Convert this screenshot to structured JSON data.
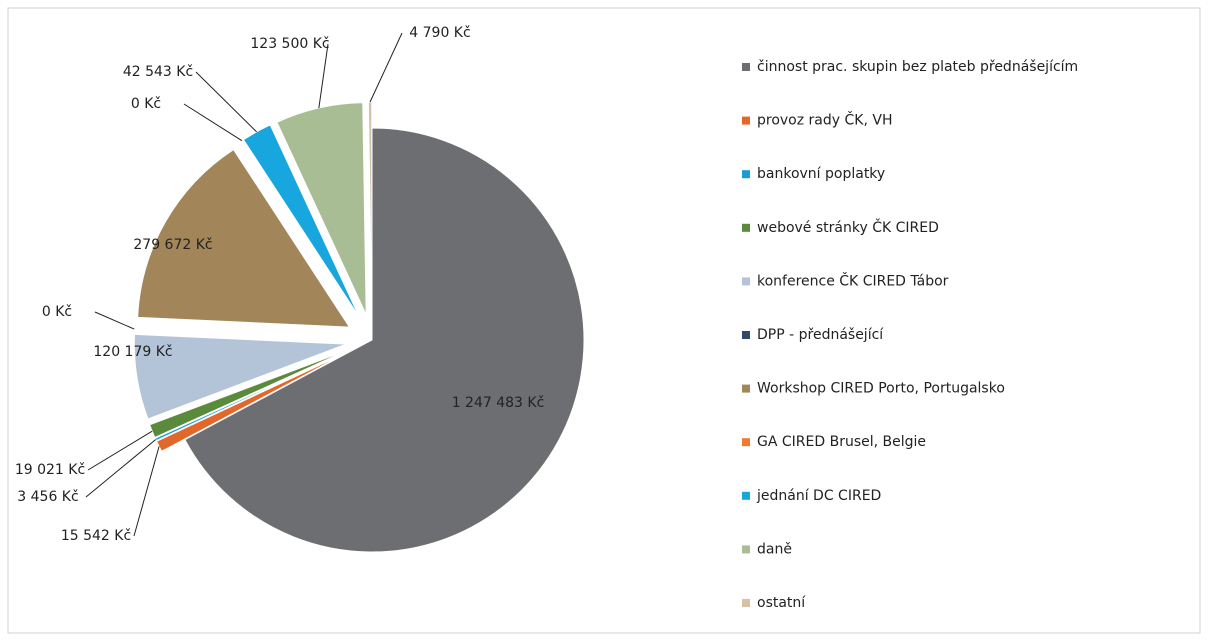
{
  "chart_data": {
    "type": "pie",
    "categories": [
      "činnost prac. skupin bez plateb přednášejícím",
      "provoz rady ČK, VH",
      "bankovní poplatky",
      "webové stránky ČK CIRED",
      "konference ČK CIRED Tábor",
      "DPP - přednášející",
      "Workshop CIRED Porto, Portugalsko",
      "GA CIRED Brusel, Belgie",
      "jednání DC CIRED",
      "daně",
      "ostatní"
    ],
    "values": [
      1247483,
      15542,
      3456,
      19021,
      120179,
      0,
      279672,
      0,
      42543,
      123500,
      4790
    ],
    "value_labels": [
      "1 247 483 Kč",
      "15 542 Kč",
      "3 456 Kč",
      "19 021 Kč",
      "120 179 Kč",
      "0 Kč",
      "279 672 Kč",
      "0 Kč",
      "42 543 Kč",
      "123 500 Kč",
      "4 790 Kč"
    ],
    "colors": [
      "#6d6e71",
      "#e2672a",
      "#1a9ad6",
      "#5a8a3c",
      "#b4c4d8",
      "#2e4a6b",
      "#a3855a",
      "#f07a30",
      "#17a6dd",
      "#a9bd94",
      "#d7c0a8"
    ],
    "legend": "right"
  }
}
